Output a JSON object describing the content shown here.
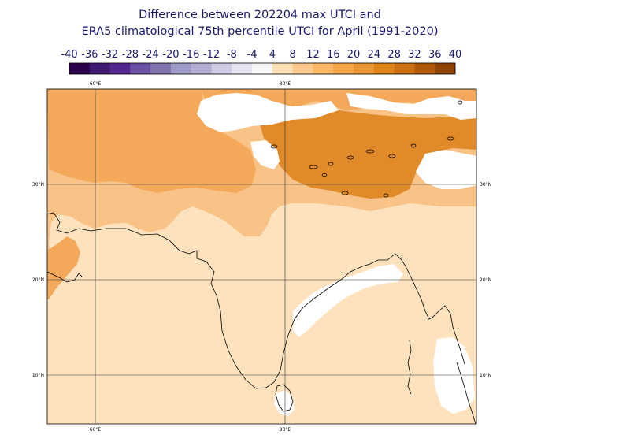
{
  "title": {
    "line1": "Difference between 202204 max UTCI and",
    "line2": "ERA5 climatological 75th percentile UTCI for April (1991-2020)"
  },
  "legend": {
    "ticks": [
      "-40",
      "-36",
      "-32",
      "-28",
      "-24",
      "-20",
      "-16",
      "-12",
      "-8",
      "-4",
      "4",
      "8",
      "12",
      "16",
      "20",
      "24",
      "28",
      "32",
      "36",
      "40"
    ],
    "colors": [
      "#2d004b",
      "#3f1a70",
      "#54278f",
      "#6a51a3",
      "#8073ac",
      "#9e9ac8",
      "#b2abd2",
      "#cfcbe5",
      "#e6e3f1",
      "#f7f7f7",
      "#fee0b6",
      "#fdc88b",
      "#fdb863",
      "#f5a544",
      "#ec9530",
      "#e08214",
      "#cd6f0e",
      "#b35806",
      "#8f4405"
    ]
  },
  "map": {
    "lon_top_labels": [
      "60°E",
      "80°E"
    ],
    "lon_bottom_labels": [
      "60°E",
      "80°E"
    ],
    "lat_left_labels": [
      "30°N",
      "20°N",
      "10°N"
    ],
    "lat_right_labels": [
      "30°N",
      "20°N",
      "10°N"
    ],
    "palette": {
      "light": "#fde2bd",
      "mid": "#f9c387",
      "strong": "#f3a85a",
      "intense": "#e08a2a",
      "neutral": "#ffffff",
      "coast": "#000000",
      "grid": "#333333"
    }
  }
}
